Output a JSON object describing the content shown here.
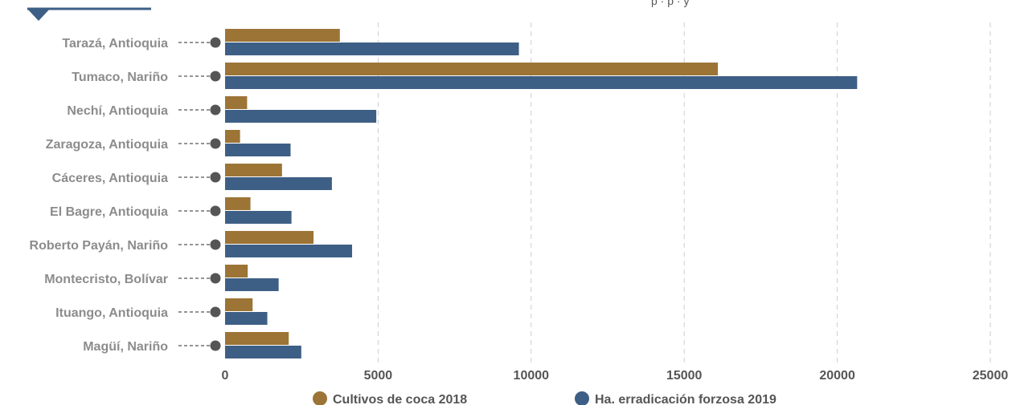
{
  "header": {
    "subtitle_fragment": "p    ·          p          ·          y"
  },
  "colors": {
    "series_coca": "#9c7436",
    "series_erradicacion": "#3e5f85",
    "accent": "#3e5f85",
    "marker": "#555555"
  },
  "chart_data": {
    "type": "bar",
    "orientation": "horizontal",
    "categories": [
      "Tarazá, Antioquia",
      "Tumaco, Nariño",
      "Nechí, Antioquia",
      "Zaragoza, Antioquia",
      "Cáceres, Antioquia",
      "El Bagre, Antioquia",
      "Roberto Payán, Nariño",
      "Montecristo, Bolívar",
      "Ituango, Antioquia",
      "Magüí, Nariño"
    ],
    "series": [
      {
        "name": "Cultivos de coca 2018",
        "values": [
          3750,
          16100,
          720,
          490,
          1860,
          830,
          2890,
          740,
          900,
          2080
        ]
      },
      {
        "name": "Ha. erradicación forzosa 2019",
        "values": [
          9600,
          20650,
          4940,
          2140,
          3490,
          2170,
          4150,
          1750,
          1380,
          2490
        ]
      }
    ],
    "xlim": [
      0,
      25000
    ],
    "xticks": [
      "0",
      "5000",
      "10000",
      "15000",
      "20000",
      "25000"
    ],
    "grid": true,
    "legend_position": "bottom"
  }
}
